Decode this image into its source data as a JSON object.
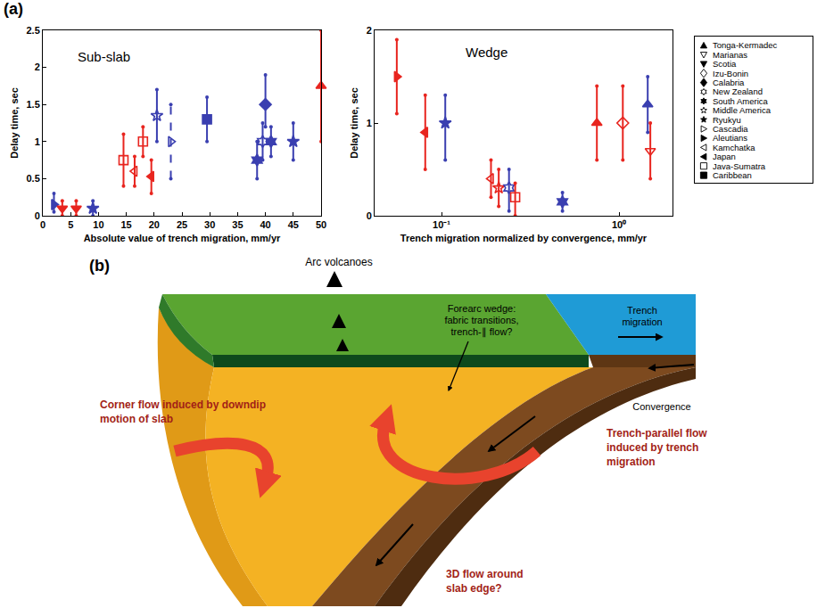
{
  "panel_labels": [
    "(a)",
    "(b)"
  ],
  "legend_entries": [
    {
      "name": "Tonga-Kermadec",
      "marker": "triangle-up"
    },
    {
      "name": "Marianas",
      "marker": "triangle-down-open"
    },
    {
      "name": "Scotia",
      "marker": "triangle-down"
    },
    {
      "name": "Izu-Bonin",
      "marker": "diamond-open"
    },
    {
      "name": "Calabria",
      "marker": "diamond"
    },
    {
      "name": "New Zealand",
      "marker": "hexagram-open"
    },
    {
      "name": "South America",
      "marker": "hexagram"
    },
    {
      "name": "Middle America",
      "marker": "star-open"
    },
    {
      "name": "Ryukyu",
      "marker": "star"
    },
    {
      "name": "Cascadia",
      "marker": "triangle-right-open"
    },
    {
      "name": "Aleutians",
      "marker": "triangle-right"
    },
    {
      "name": "Kamchatka",
      "marker": "triangle-left-open"
    },
    {
      "name": "Japan",
      "marker": "triangle-left"
    },
    {
      "name": "Java-Sumatra",
      "marker": "square-open"
    },
    {
      "name": "Caribbean",
      "marker": "square"
    }
  ],
  "chart_data": [
    {
      "type": "scatter",
      "title": "Sub-slab",
      "x_label": "Absolute value of trench migration, mm/yr",
      "y_label": "Delay time, sec",
      "xlim": [
        0,
        50
      ],
      "ylim": [
        0,
        2.5
      ],
      "xticks": [
        0,
        5,
        10,
        15,
        20,
        25,
        30,
        35,
        40,
        45,
        50
      ],
      "yticks": [
        0,
        0.5,
        1,
        1.5,
        2,
        2.5
      ],
      "grid": false,
      "series": [
        {
          "name": "Tonga-Kermadec",
          "x": [
            50
          ],
          "values": [
            1.75
          ],
          "error_low": [
            1.0
          ],
          "error_high": [
            2.5
          ],
          "colors": [
            "#e8251f"
          ]
        },
        {
          "name": "Calabria",
          "x": [
            40
          ],
          "values": [
            1.5
          ],
          "error_low": [
            1.2
          ],
          "error_high": [
            1.9
          ],
          "colors": [
            "#3a3fb0"
          ]
        },
        {
          "name": "New Zealand",
          "x": [
            39.5
          ],
          "values": [
            1.0
          ],
          "error_low": [
            0.75
          ],
          "error_high": [
            1.25
          ],
          "colors": [
            "#3a3fb0"
          ]
        },
        {
          "name": "South America",
          "x": [
            38.5,
            41
          ],
          "values": [
            0.75,
            1.0
          ],
          "error_low": [
            0.5,
            0.8
          ],
          "error_high": [
            1.0,
            1.2
          ],
          "colors": [
            "#3a3fb0",
            "#3a3fb0"
          ]
        },
        {
          "name": "Middle America",
          "x": [
            20.5
          ],
          "values": [
            1.35
          ],
          "error_low": [
            1.0
          ],
          "error_high": [
            1.7
          ],
          "colors": [
            "#3a3fb0"
          ]
        },
        {
          "name": "Ryukyu",
          "x": [
            9,
            45
          ],
          "values": [
            0.1,
            1.0
          ],
          "error_low": [
            0,
            0.75
          ],
          "error_high": [
            0.2,
            1.25
          ],
          "colors": [
            "#3a3fb0",
            "#3a3fb0"
          ]
        },
        {
          "name": "Cascadia",
          "x": [
            23
          ],
          "values": [
            1.0
          ],
          "error_low": [
            0.5
          ],
          "error_high": [
            1.5
          ],
          "colors": [
            "#3a3fb0"
          ],
          "line_style": "dashed"
        },
        {
          "name": "Aleutians",
          "x": [
            2
          ],
          "values": [
            0.15
          ],
          "error_low": [
            0.05
          ],
          "error_high": [
            0.3
          ],
          "colors": [
            "#3a3fb0"
          ]
        },
        {
          "name": "Kamchatka",
          "x": [
            16.5
          ],
          "values": [
            0.6
          ],
          "error_low": [
            0.4
          ],
          "error_high": [
            0.8
          ],
          "colors": [
            "#e8251f"
          ]
        },
        {
          "name": "Japan",
          "x": [
            19.5
          ],
          "values": [
            0.53
          ],
          "error_low": [
            0.3
          ],
          "error_high": [
            0.75
          ],
          "colors": [
            "#e8251f"
          ]
        },
        {
          "name": "Java-Sumatra",
          "x": [
            14.5,
            18
          ],
          "values": [
            0.75,
            1.0
          ],
          "error_low": [
            0.4,
            0.8
          ],
          "error_high": [
            1.1,
            1.2
          ],
          "colors": [
            "#e8251f",
            "#e8251f"
          ]
        },
        {
          "name": "Caribbean",
          "x": [
            29.5
          ],
          "values": [
            1.3
          ],
          "error_low": [
            1.0
          ],
          "error_high": [
            1.6
          ],
          "colors": [
            "#3a3fb0"
          ]
        },
        {
          "name": "Scotia",
          "x": [
            3.5,
            6
          ],
          "values": [
            0.1,
            0.1
          ],
          "error_low": [
            0,
            0
          ],
          "error_high": [
            0.2,
            0.2
          ],
          "colors": [
            "#e8251f",
            "#e8251f"
          ]
        }
      ]
    },
    {
      "type": "scatter",
      "title": "Wedge",
      "x_label": "Trench migration normalized by convergence, mm/yr",
      "y_label": "Delay time, sec",
      "log": "x",
      "xlim": [
        0.042,
        2
      ],
      "ylim": [
        0,
        2
      ],
      "xticks": [
        {
          "value": 0.1,
          "label": "10⁻¹"
        },
        {
          "value": 1,
          "label": "10⁰"
        }
      ],
      "yticks": [
        0,
        1,
        2
      ],
      "grid": false,
      "series": [
        {
          "name": "Aleutians",
          "x": [
            0.056
          ],
          "values": [
            1.5
          ],
          "error_low": [
            1.1
          ],
          "error_high": [
            1.9
          ],
          "colors": [
            "#e8251f"
          ]
        },
        {
          "name": "Japan",
          "x": [
            0.081
          ],
          "values": [
            0.9
          ],
          "error_low": [
            0.5
          ],
          "error_high": [
            1.3
          ],
          "colors": [
            "#e8251f"
          ]
        },
        {
          "name": "Ryukyu",
          "x": [
            0.105
          ],
          "values": [
            1.0
          ],
          "error_low": [
            0.6
          ],
          "error_high": [
            1.3
          ],
          "colors": [
            "#3a3fb0"
          ]
        },
        {
          "name": "Kamchatka",
          "x": [
            0.19
          ],
          "values": [
            0.4
          ],
          "error_low": [
            0.2
          ],
          "error_high": [
            0.6
          ],
          "colors": [
            "#e8251f"
          ]
        },
        {
          "name": "Middle America",
          "x": [
            0.21
          ],
          "values": [
            0.3
          ],
          "error_low": [
            0.1
          ],
          "error_high": [
            0.5
          ],
          "colors": [
            "#e8251f"
          ]
        },
        {
          "name": "New Zealand",
          "x": [
            0.24
          ],
          "values": [
            0.3
          ],
          "error_low": [
            0.05
          ],
          "error_high": [
            0.5
          ],
          "colors": [
            "#3a3fb0"
          ]
        },
        {
          "name": "Java-Sumatra",
          "x": [
            0.26
          ],
          "values": [
            0.2
          ],
          "error_low": [
            0.0
          ],
          "error_high": [
            0.35
          ],
          "colors": [
            "#e8251f"
          ]
        },
        {
          "name": "South America",
          "x": [
            0.48
          ],
          "values": [
            0.15
          ],
          "error_low": [
            0.05
          ],
          "error_high": [
            0.25
          ],
          "colors": [
            "#3a3fb0"
          ]
        },
        {
          "name": "Tonga-Kermadec",
          "x": [
            0.75,
            1.45
          ],
          "values": [
            1.0,
            1.2
          ],
          "error_low": [
            0.6,
            0.9
          ],
          "error_high": [
            1.4,
            1.5
          ],
          "colors": [
            "#e8251f",
            "#3a3fb0"
          ]
        },
        {
          "name": "Izu-Bonin",
          "x": [
            1.05
          ],
          "values": [
            1.0
          ],
          "error_low": [
            0.6
          ],
          "error_high": [
            1.4
          ],
          "colors": [
            "#e8251f"
          ]
        },
        {
          "name": "Marianas",
          "x": [
            1.5
          ],
          "values": [
            0.7
          ],
          "error_low": [
            0.4
          ],
          "error_high": [
            1.0
          ],
          "colors": [
            "#e8251f"
          ]
        }
      ]
    }
  ],
  "diagram": {
    "arc_volcanoes": "Arc volcanoes",
    "forearc_wedge": [
      "Forearc wedge:",
      "fabric transitions,",
      "trench-∥ flow?"
    ],
    "trench_migration": [
      "Trench",
      "migration"
    ],
    "convergence": "Convergence",
    "corner_flow": [
      "Corner flow induced by downdip",
      "motion of slab"
    ],
    "trench_parallel_flow": [
      "Trench-parallel flow",
      "induced by trench",
      "migration"
    ],
    "slab_edge_flow": [
      "3D flow around",
      "slab edge?"
    ]
  }
}
